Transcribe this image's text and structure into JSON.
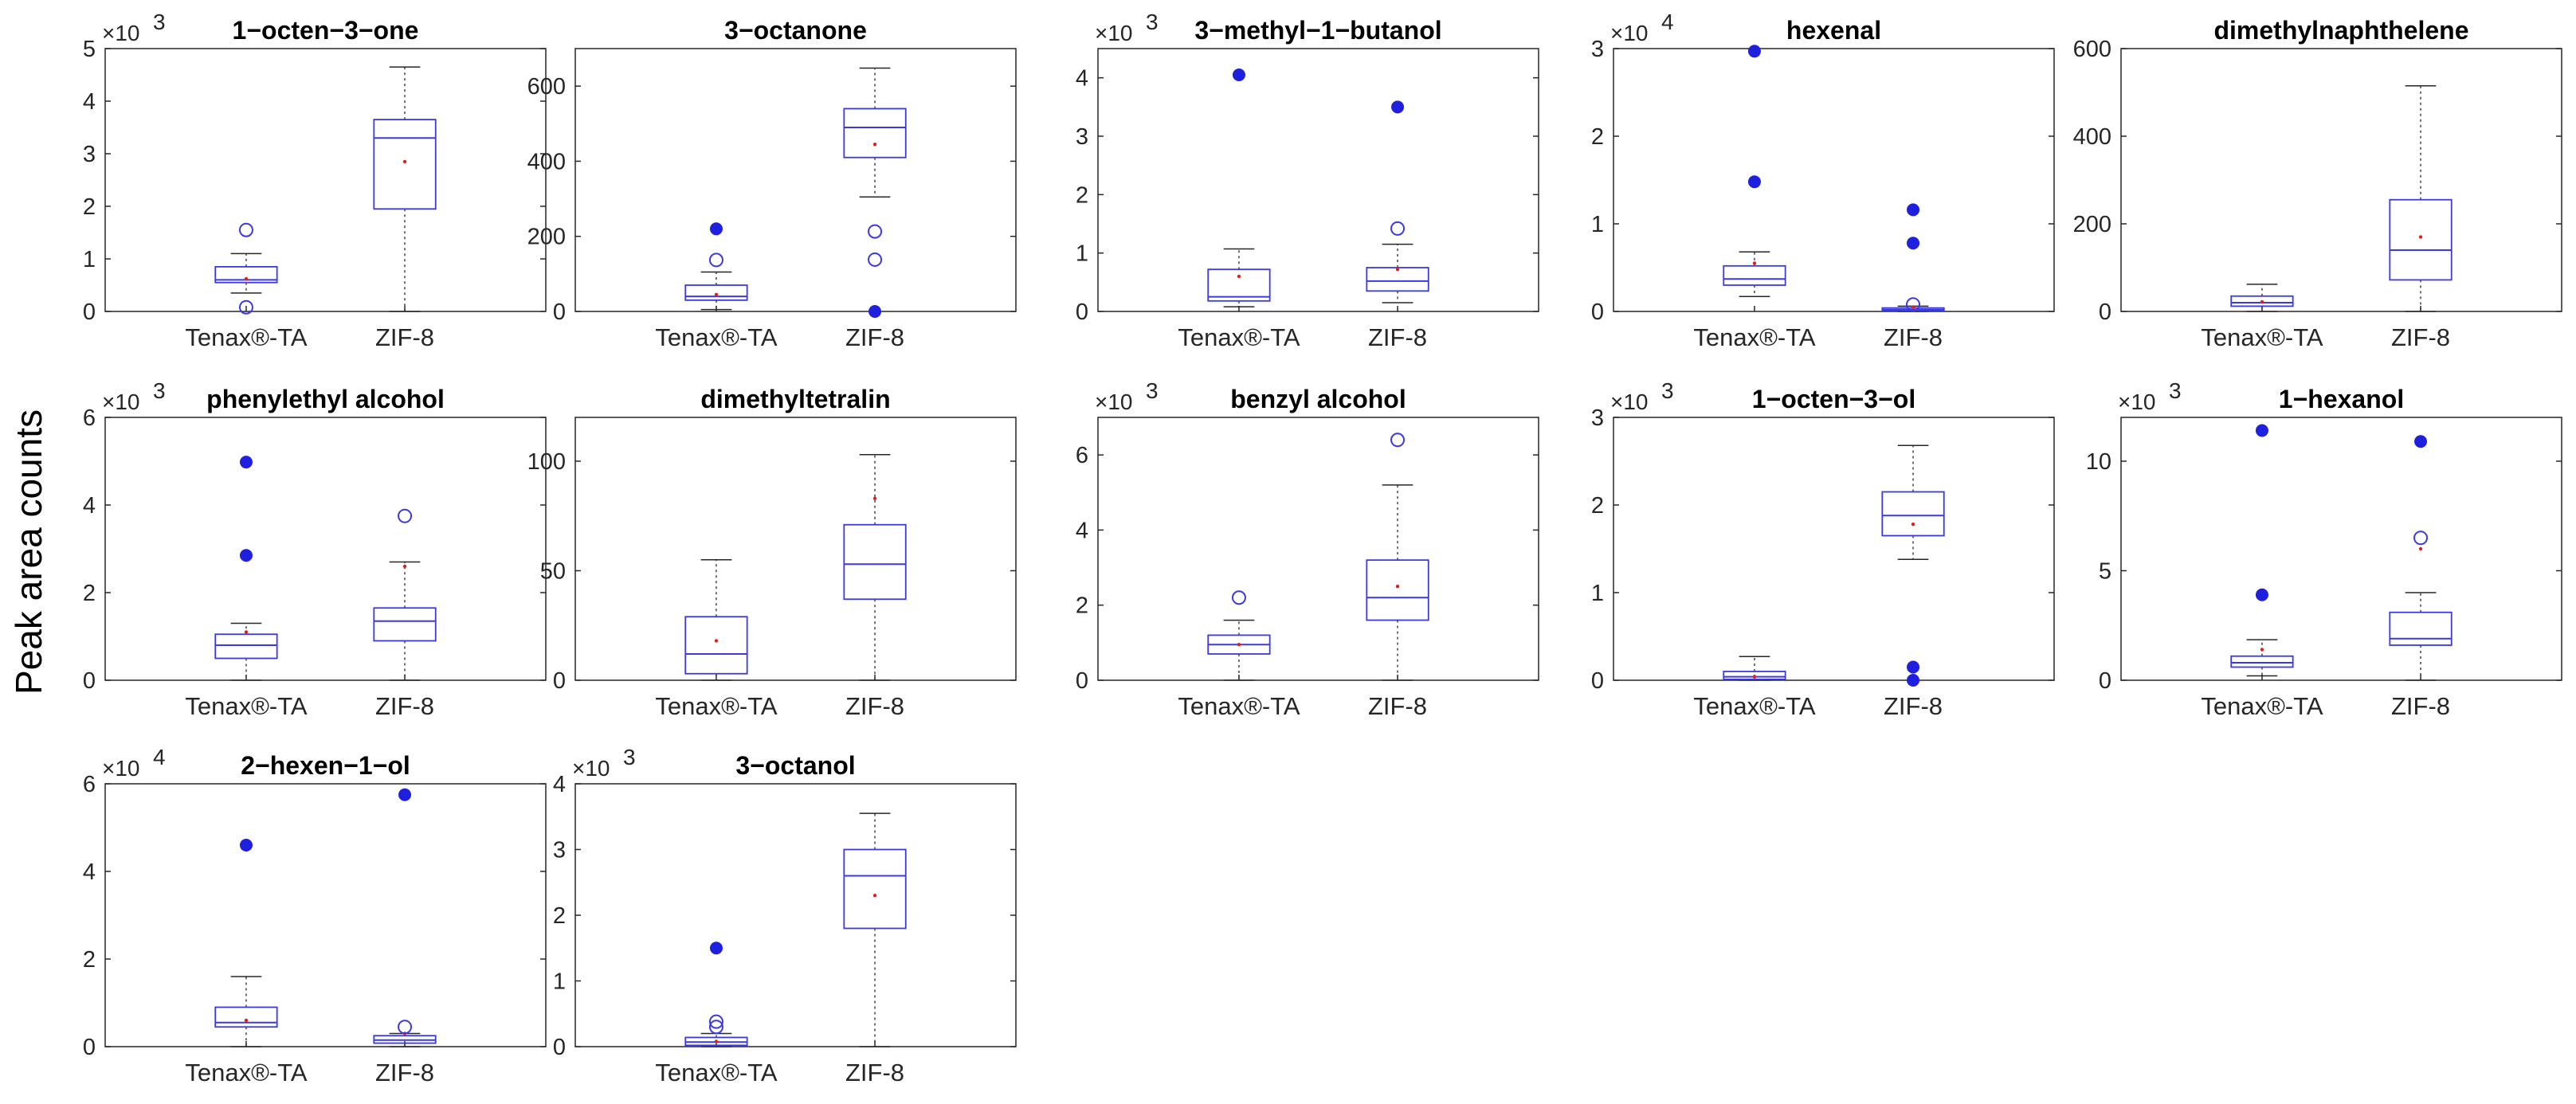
{
  "ylabel": "Peak area counts",
  "chart_data": [
    {
      "type": "box",
      "title": "1−octen−3−one",
      "multiplier": "×10",
      "exponent": "3",
      "ylim": [
        0,
        5
      ],
      "yticks": [
        "0",
        "1",
        "2",
        "3",
        "4",
        "5"
      ],
      "categories": [
        "Tenax®-TA",
        "ZIF-8"
      ],
      "boxes": [
        {
          "min": 0.35,
          "q1": 0.55,
          "median": 0.6,
          "q3": 0.85,
          "max": 1.1,
          "mean": 0.62,
          "outliers_filled": [],
          "outliers_open": [
            1.55,
            0.08
          ]
        },
        {
          "min": 0,
          "q1": 1.95,
          "median": 3.3,
          "q3": 3.65,
          "max": 4.65,
          "mean": 2.85,
          "outliers_filled": [],
          "outliers_open": []
        }
      ]
    },
    {
      "type": "box",
      "title": "3−octanone",
      "multiplier": "",
      "exponent": "",
      "ylim": [
        0,
        700
      ],
      "yticks": [
        "0",
        "200",
        "400",
        "600"
      ],
      "categories": [
        "Tenax®-TA",
        "ZIF-8"
      ],
      "boxes": [
        {
          "min": 5,
          "q1": 30,
          "median": 40,
          "q3": 70,
          "max": 105,
          "mean": 45,
          "outliers_filled": [
            220
          ],
          "outliers_open": [
            137
          ]
        },
        {
          "min": 305,
          "q1": 410,
          "median": 490,
          "q3": 540,
          "max": 648,
          "mean": 445,
          "outliers_filled": [
            0
          ],
          "outliers_open": [
            213,
            138
          ]
        }
      ]
    },
    {
      "type": "box",
      "title": "3−methyl−1−butanol",
      "multiplier": "×10",
      "exponent": "3",
      "ylim": [
        0,
        4.5
      ],
      "yticks": [
        "0",
        "1",
        "2",
        "3",
        "4"
      ],
      "categories": [
        "Tenax®-TA",
        "ZIF-8"
      ],
      "boxes": [
        {
          "min": 0.08,
          "q1": 0.18,
          "median": 0.25,
          "q3": 0.72,
          "max": 1.07,
          "mean": 0.6,
          "outliers_filled": [
            4.05
          ],
          "outliers_open": []
        },
        {
          "min": 0.15,
          "q1": 0.35,
          "median": 0.52,
          "q3": 0.75,
          "max": 1.15,
          "mean": 0.72,
          "outliers_filled": [
            3.5
          ],
          "outliers_open": [
            1.42
          ]
        }
      ]
    },
    {
      "type": "box",
      "title": "hexenal",
      "multiplier": "×10",
      "exponent": "4",
      "ylim": [
        0,
        3
      ],
      "yticks": [
        "0",
        "1",
        "2",
        "3"
      ],
      "categories": [
        "Tenax®-TA",
        "ZIF-8"
      ],
      "boxes": [
        {
          "min": 0.17,
          "q1": 0.3,
          "median": 0.37,
          "q3": 0.52,
          "max": 0.68,
          "mean": 0.55,
          "outliers_filled": [
            2.97,
            1.48
          ],
          "outliers_open": []
        },
        {
          "min": 0,
          "q1": 0.01,
          "median": 0.02,
          "q3": 0.04,
          "max": 0.06,
          "mean": 0.05,
          "outliers_filled": [
            1.16,
            0.78
          ],
          "outliers_open": [
            0.08
          ]
        }
      ]
    },
    {
      "type": "box",
      "title": "dimethylnaphthelene",
      "multiplier": "",
      "exponent": "",
      "ylim": [
        0,
        600
      ],
      "yticks": [
        "0",
        "200",
        "400",
        "600"
      ],
      "categories": [
        "Tenax®-TA",
        "ZIF-8"
      ],
      "boxes": [
        {
          "min": 0,
          "q1": 12,
          "median": 20,
          "q3": 35,
          "max": 62,
          "mean": 22,
          "outliers_filled": [],
          "outliers_open": []
        },
        {
          "min": 0,
          "q1": 72,
          "median": 140,
          "q3": 255,
          "max": 515,
          "mean": 170,
          "outliers_filled": [],
          "outliers_open": []
        }
      ]
    },
    {
      "type": "box",
      "title": "phenylethyl alcohol",
      "multiplier": "×10",
      "exponent": "3",
      "ylim": [
        0,
        6
      ],
      "yticks": [
        "0",
        "2",
        "4",
        "6"
      ],
      "categories": [
        "Tenax®-TA",
        "ZIF-8"
      ],
      "boxes": [
        {
          "min": 0,
          "q1": 0.5,
          "median": 0.8,
          "q3": 1.05,
          "max": 1.3,
          "mean": 1.1,
          "outliers_filled": [
            4.98,
            2.85
          ],
          "outliers_open": []
        },
        {
          "min": 0,
          "q1": 0.9,
          "median": 1.35,
          "q3": 1.65,
          "max": 2.7,
          "mean": 2.6,
          "outliers_filled": [],
          "outliers_open": [
            3.75
          ]
        }
      ]
    },
    {
      "type": "box",
      "title": "dimethyltetralin",
      "multiplier": "",
      "exponent": "",
      "ylim": [
        0,
        120
      ],
      "yticks": [
        "0",
        "50",
        "100"
      ],
      "categories": [
        "Tenax®-TA",
        "ZIF-8"
      ],
      "boxes": [
        {
          "min": 0,
          "q1": 3,
          "median": 12,
          "q3": 29,
          "max": 55,
          "mean": 18,
          "outliers_filled": [],
          "outliers_open": []
        },
        {
          "min": 0,
          "q1": 37,
          "median": 53,
          "q3": 71,
          "max": 103,
          "mean": 83,
          "outliers_filled": [],
          "outliers_open": []
        }
      ]
    },
    {
      "type": "box",
      "title": "benzyl alcohol",
      "multiplier": "×10",
      "exponent": "3",
      "ylim": [
        0,
        7
      ],
      "yticks": [
        "0",
        "2",
        "4",
        "6"
      ],
      "categories": [
        "Tenax®-TA",
        "ZIF-8"
      ],
      "boxes": [
        {
          "min": 0,
          "q1": 0.7,
          "median": 0.95,
          "q3": 1.2,
          "max": 1.6,
          "mean": 0.95,
          "outliers_filled": [],
          "outliers_open": [
            2.2
          ]
        },
        {
          "min": 0,
          "q1": 1.6,
          "median": 2.2,
          "q3": 3.2,
          "max": 5.2,
          "mean": 2.5,
          "outliers_filled": [],
          "outliers_open": [
            6.4
          ]
        }
      ]
    },
    {
      "type": "box",
      "title": "1−octen−3−ol",
      "multiplier": "×10",
      "exponent": "3",
      "ylim": [
        0,
        3
      ],
      "yticks": [
        "0",
        "1",
        "2",
        "3"
      ],
      "categories": [
        "Tenax®-TA",
        "ZIF-8"
      ],
      "boxes": [
        {
          "min": 0,
          "q1": 0.01,
          "median": 0.04,
          "q3": 0.1,
          "max": 0.27,
          "mean": 0.04,
          "outliers_filled": [],
          "outliers_open": []
        },
        {
          "min": 1.38,
          "q1": 1.65,
          "median": 1.88,
          "q3": 2.15,
          "max": 2.68,
          "mean": 1.78,
          "outliers_filled": [
            0.15,
            0
          ],
          "outliers_open": []
        }
      ]
    },
    {
      "type": "box",
      "title": "1−hexanol",
      "multiplier": "×10",
      "exponent": "3",
      "ylim": [
        0,
        12
      ],
      "yticks": [
        "0",
        "5",
        "10"
      ],
      "categories": [
        "Tenax®-TA",
        "ZIF-8"
      ],
      "boxes": [
        {
          "min": 0.2,
          "q1": 0.6,
          "median": 0.8,
          "q3": 1.1,
          "max": 1.85,
          "mean": 1.4,
          "outliers_filled": [
            11.4,
            3.9
          ],
          "outliers_open": []
        },
        {
          "min": 0,
          "q1": 1.6,
          "median": 1.9,
          "q3": 3.1,
          "max": 4,
          "mean": 6,
          "outliers_filled": [
            10.9
          ],
          "outliers_open": [
            6.5
          ]
        }
      ]
    },
    {
      "type": "box",
      "title": "2−hexen−1−ol",
      "multiplier": "×10",
      "exponent": "4",
      "ylim": [
        0,
        6
      ],
      "yticks": [
        "0",
        "2",
        "4",
        "6"
      ],
      "categories": [
        "Tenax®-TA",
        "ZIF-8"
      ],
      "boxes": [
        {
          "min": 0,
          "q1": 0.45,
          "median": 0.55,
          "q3": 0.9,
          "max": 1.6,
          "mean": 0.6,
          "outliers_filled": [
            4.6
          ],
          "outliers_open": []
        },
        {
          "min": 0,
          "q1": 0.08,
          "median": 0.15,
          "q3": 0.25,
          "max": 0.3,
          "mean": 0.3,
          "outliers_filled": [
            5.75
          ],
          "outliers_open": [
            0.45
          ]
        }
      ]
    },
    {
      "type": "box",
      "title": "3−octanol",
      "multiplier": "×10",
      "exponent": "3",
      "ylim": [
        0,
        4
      ],
      "yticks": [
        "0",
        "1",
        "2",
        "3",
        "4"
      ],
      "categories": [
        "Tenax®-TA",
        "ZIF-8"
      ],
      "boxes": [
        {
          "min": 0,
          "q1": 0.02,
          "median": 0.07,
          "q3": 0.14,
          "max": 0.2,
          "mean": 0.08,
          "outliers_filled": [
            1.5
          ],
          "outliers_open": [
            0.38,
            0.3
          ]
        },
        {
          "min": 0,
          "q1": 1.8,
          "median": 2.6,
          "q3": 3,
          "max": 3.55,
          "mean": 2.3,
          "outliers_filled": [],
          "outliers_open": []
        }
      ]
    }
  ]
}
